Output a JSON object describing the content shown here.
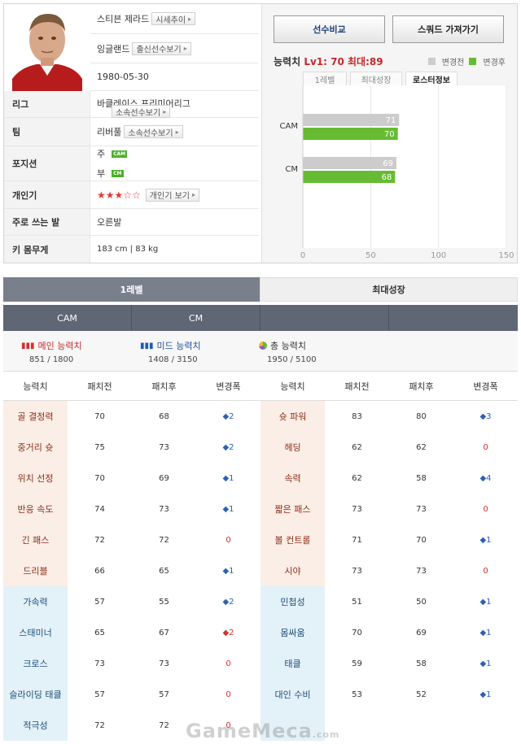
{
  "player": {
    "name": "스티븐 제라드",
    "market_btn": "시세추이",
    "nation": "잉글랜드",
    "nation_btn": "출신선수보기",
    "birth": "1980-05-30",
    "league_label": "리그",
    "league": "바클레이스 프리미어리그",
    "league_btn": "소속선수보기",
    "team_label": "팀",
    "team": "리버풀",
    "team_btn": "소속선수보기",
    "position_label": "포지션",
    "pos_main_prefix": "주",
    "pos_main": "CAM",
    "pos_sub_prefix": "부",
    "pos_sub": "CM",
    "popularity_label": "개인기",
    "popularity_stars": "★★★☆☆",
    "popularity_btn": "개인기 보기",
    "foot_label": "주로 쓰는 발",
    "foot": "오른발",
    "body_label": "키 몸무게",
    "body": "183 cm  |  83 kg"
  },
  "actions": {
    "compare": "선수비교",
    "squad": "스쿼드 가져가기"
  },
  "ability": {
    "title_prefix": "능력치",
    "title_value": "Lv1: 70 최대:89",
    "legend_before": "변경전",
    "legend_after": "변경후",
    "tabs": [
      "1레벨",
      "최대성장",
      "로스터정보"
    ]
  },
  "colors": {
    "before": "#cccccc",
    "after": "#66bb33",
    "attack_bg": "#fbeee6",
    "defense_bg": "#e3f1f8"
  },
  "chart_data": {
    "type": "bar",
    "categories": [
      "CAM",
      "CM"
    ],
    "series": [
      {
        "name": "변경전",
        "values": [
          71,
          69
        ]
      },
      {
        "name": "변경후",
        "values": [
          70,
          68
        ]
      }
    ],
    "xlim": [
      0,
      150
    ],
    "ticks": [
      0,
      50,
      100,
      150
    ],
    "grid": true
  },
  "level_tabs": [
    "1레벨",
    "최대성장"
  ],
  "position_tabs": [
    "CAM",
    "CM",
    "",
    ""
  ],
  "summary": {
    "main_label": "메인 능력치",
    "main_value": "851 / 1800",
    "mid_label": "미드 능력치",
    "mid_value": "1408 / 3150",
    "total_label": "총 능력치",
    "total_value": "1950 / 5100"
  },
  "table_headers": [
    "능력치",
    "패치전",
    "패치후",
    "변경폭",
    "능력치",
    "패치전",
    "패치후",
    "변경폭"
  ],
  "rows": [
    [
      {
        "n": "골 결정력",
        "a": "70",
        "b": "68",
        "d": "◆2",
        "t": "atk",
        "c": "up"
      },
      {
        "n": "슛 파워",
        "a": "83",
        "b": "80",
        "d": "◆3",
        "t": "atk",
        "c": "up"
      }
    ],
    [
      {
        "n": "중거리 슛",
        "a": "75",
        "b": "73",
        "d": "◆2",
        "t": "atk",
        "c": "up"
      },
      {
        "n": "헤딩",
        "a": "62",
        "b": "62",
        "d": "0",
        "t": "atk",
        "c": "zero"
      }
    ],
    [
      {
        "n": "위치 선정",
        "a": "70",
        "b": "69",
        "d": "◆1",
        "t": "atk",
        "c": "up"
      },
      {
        "n": "속력",
        "a": "62",
        "b": "58",
        "d": "◆4",
        "t": "atk",
        "c": "up"
      }
    ],
    [
      {
        "n": "반응 속도",
        "a": "74",
        "b": "73",
        "d": "◆1",
        "t": "atk",
        "c": "up"
      },
      {
        "n": "짧은 패스",
        "a": "73",
        "b": "73",
        "d": "0",
        "t": "atk",
        "c": "zero"
      }
    ],
    [
      {
        "n": "긴 패스",
        "a": "72",
        "b": "72",
        "d": "0",
        "t": "atk",
        "c": "zero"
      },
      {
        "n": "볼 컨트롤",
        "a": "71",
        "b": "70",
        "d": "◆1",
        "t": "atk",
        "c": "up"
      }
    ],
    [
      {
        "n": "드리블",
        "a": "66",
        "b": "65",
        "d": "◆1",
        "t": "atk",
        "c": "up"
      },
      {
        "n": "시야",
        "a": "73",
        "b": "73",
        "d": "0",
        "t": "atk",
        "c": "zero"
      }
    ],
    [
      {
        "n": "가속력",
        "a": "57",
        "b": "55",
        "d": "◆2",
        "t": "def",
        "c": "up"
      },
      {
        "n": "민첩성",
        "a": "51",
        "b": "50",
        "d": "◆1",
        "t": "def",
        "c": "up"
      }
    ],
    [
      {
        "n": "스태미너",
        "a": "65",
        "b": "67",
        "d": "◆2",
        "t": "def",
        "c": "down"
      },
      {
        "n": "몸싸움",
        "a": "70",
        "b": "69",
        "d": "◆1",
        "t": "def",
        "c": "up"
      }
    ],
    [
      {
        "n": "크로스",
        "a": "73",
        "b": "73",
        "d": "0",
        "t": "def",
        "c": "zero"
      },
      {
        "n": "태클",
        "a": "59",
        "b": "58",
        "d": "◆1",
        "t": "def",
        "c": "up"
      }
    ],
    [
      {
        "n": "슬라이딩 태클",
        "a": "57",
        "b": "57",
        "d": "0",
        "t": "def",
        "c": "zero"
      },
      {
        "n": "대인 수비",
        "a": "53",
        "b": "52",
        "d": "◆1",
        "t": "def",
        "c": "up"
      }
    ],
    [
      {
        "n": "적극성",
        "a": "72",
        "b": "72",
        "d": "0",
        "t": "def",
        "c": "zero"
      },
      {
        "n": "",
        "a": "",
        "b": "",
        "d": "",
        "t": "def",
        "c": "zero"
      }
    ]
  ],
  "watermark": "GameMeca",
  "watermark_suffix": ".com"
}
